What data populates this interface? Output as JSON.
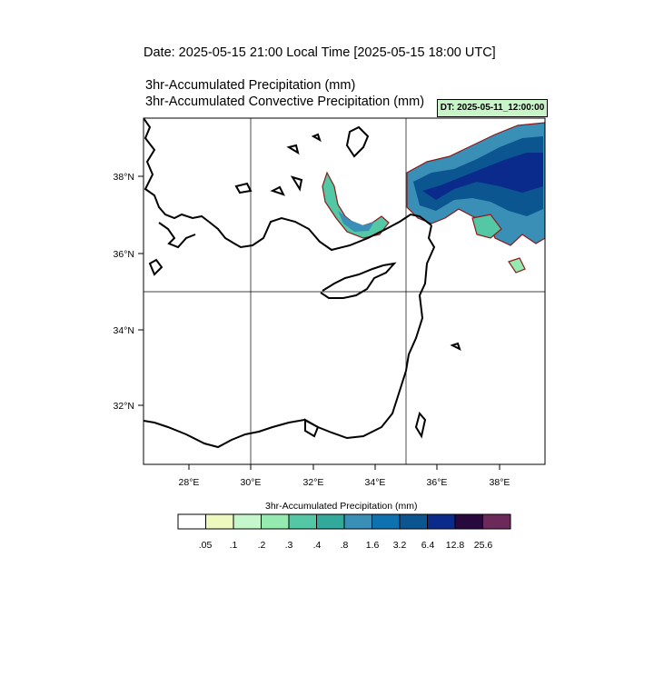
{
  "header": {
    "date_line": "Date: 2025-05-15  21:00 Local Time [2025-05-15  18:00 UTC]",
    "title_line1": "3hr-Accumulated Precipitation   (mm)",
    "title_line2": "3hr-Accumulated Convective Precipitation   (mm)",
    "dt_badge": "DT: 2025-05-11_12:00:00"
  },
  "map": {
    "lon_range": [
      26.6,
      39.4
    ],
    "lat_range": [
      30.4,
      39.4
    ],
    "lon_ticks": [
      "28°E",
      "30°E",
      "32°E",
      "34°E",
      "36°E",
      "38°E"
    ],
    "lat_ticks": [
      "32°N",
      "34°N",
      "36°N",
      "38°N"
    ],
    "gridlines": {
      "lon": [
        30,
        35
      ],
      "lat": [
        35
      ]
    },
    "colors": {
      "coast": "#000000",
      "contour": "#8b1a1a",
      "grid": "#000000"
    }
  },
  "colorbar": {
    "title": "3hr-Accumulated Precipitation   (mm)",
    "labels": [
      ".05",
      ".1",
      ".2",
      ".3",
      ".4",
      ".8",
      "1.6",
      "3.2",
      "6.4",
      "12.8",
      "25.6"
    ],
    "colors": [
      "#ffffff",
      "#eef9c0",
      "#c6f7cc",
      "#95eab0",
      "#54c7a4",
      "#31a99b",
      "#3a8fb6",
      "#0f72b0",
      "#0b5590",
      "#0a2a8c",
      "#28093e",
      "#6b2a5a"
    ]
  }
}
